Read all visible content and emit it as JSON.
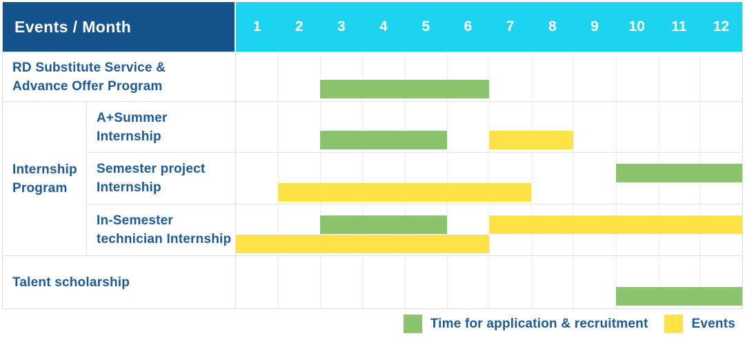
{
  "header": {
    "title": "Events / Month"
  },
  "chart_data": {
    "type": "bar",
    "subtype": "gantt-schedule-table",
    "title": "Events / Month",
    "x_label": "Month",
    "x_ticks": [
      "1",
      "2",
      "3",
      "4",
      "5",
      "6",
      "7",
      "8",
      "9",
      "10",
      "11",
      "12"
    ],
    "x_range": [
      1,
      12
    ],
    "rows": [
      {
        "group": "",
        "label": "RD Substitute Service & Advance Offer Program",
        "label_lines": [
          "RD Substitute Service &",
          "Advance Offer Program"
        ],
        "bars": [
          {
            "kind": "application",
            "start_month": 3,
            "end_month": 6,
            "line": 0
          }
        ]
      },
      {
        "group": "Internship Program",
        "group_lines": [
          "Internship",
          "Program"
        ],
        "label": "A+Summer Internship",
        "label_lines": [
          "A+Summer",
          "Internship"
        ],
        "bars": [
          {
            "kind": "application",
            "start_month": 3,
            "end_month": 5,
            "line": 0
          },
          {
            "kind": "event",
            "start_month": 7,
            "end_month": 8,
            "line": 0
          }
        ]
      },
      {
        "group": "Internship Program",
        "label": "Semester project Internship",
        "label_lines": [
          "Semester project",
          "Internship"
        ],
        "bars": [
          {
            "kind": "application",
            "start_month": 10,
            "end_month": 12,
            "line": 0
          },
          {
            "kind": "event",
            "start_month": 2,
            "end_month": 7,
            "line": 1
          }
        ]
      },
      {
        "group": "Internship Program",
        "label": "In-Semester technician Internship",
        "label_lines": [
          "In-Semester",
          "technician Internship"
        ],
        "bars": [
          {
            "kind": "application",
            "start_month": 3,
            "end_month": 5,
            "line": 0
          },
          {
            "kind": "event",
            "start_month": 7,
            "end_month": 12,
            "line": 0
          },
          {
            "kind": "event",
            "start_month": 1,
            "end_month": 6,
            "line": 1
          }
        ]
      },
      {
        "group": "",
        "label": "Talent scholarship",
        "label_lines": [
          "Talent scholarship"
        ],
        "bars": [
          {
            "kind": "application",
            "start_month": 10,
            "end_month": 12,
            "line": 0
          }
        ]
      }
    ],
    "legend": [
      {
        "kind": "application",
        "label": "Time for application & recruitment",
        "color": "#8bc46d"
      },
      {
        "kind": "event",
        "label": "Events",
        "color": "#fde345"
      }
    ],
    "layout": {
      "grid": "on",
      "legend_position": "bottom-right"
    }
  },
  "colors": {
    "header_bg": "#15538f",
    "months_bg": "#1dd3f0",
    "header_text": "#ffffff",
    "label_text": "#1a5a9c",
    "application_bar": "#8bc46d",
    "event_bar": "#fde345",
    "grid_line": "#ededed",
    "outer_border": "#dfdfdf"
  }
}
